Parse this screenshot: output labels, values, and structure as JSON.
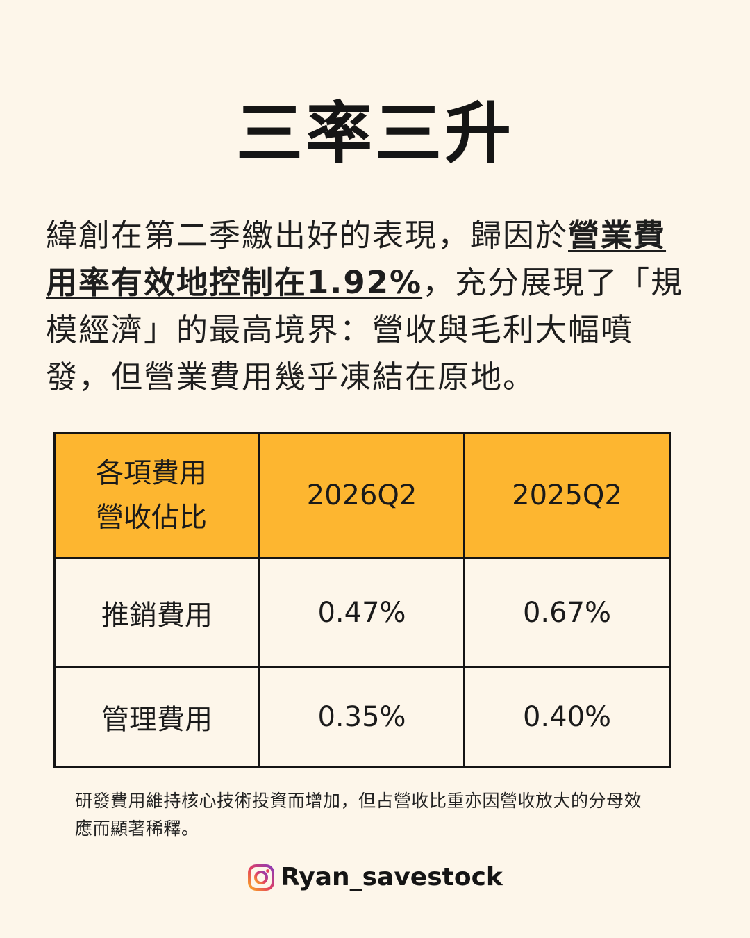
{
  "title": "三率三升",
  "intro": {
    "part1": "緯創在第二季繳出好的表現，歸因於",
    "emphasis": "營業費用率有效地控制在1.92%",
    "part2": "，充分展現了「規模經濟」的最高境界：營收與毛利大幅噴發，但營業費用幾乎凍結在原地。"
  },
  "table": {
    "header_line1": "各項費用",
    "header_line2": "營收佔比",
    "columns": [
      "2026Q2",
      "2025Q2"
    ],
    "rows": [
      {
        "label": "推銷費用",
        "values": [
          "0.47%",
          "0.67%"
        ]
      },
      {
        "label": "管理費用",
        "values": [
          "0.35%",
          "0.40%"
        ]
      }
    ]
  },
  "footnote": "研發費用維持核心技術投資而增加，但占營收比重亦因營收放大的分母效應而顯著稀釋。",
  "social": {
    "icon": "instagram-icon",
    "handle": "Ryan_savestock"
  },
  "colors": {
    "background": "#fdf6ea",
    "header_fill": "#fdb630",
    "text": "#1a1a1a"
  }
}
